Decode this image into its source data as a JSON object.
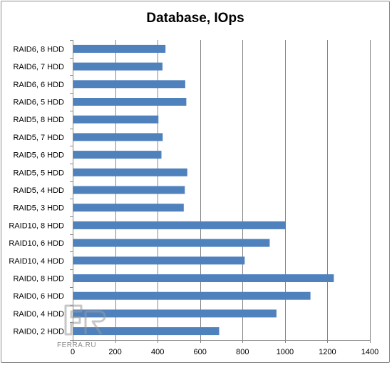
{
  "chart_data": {
    "type": "bar",
    "orientation": "horizontal",
    "title": "Database, IOps",
    "xlabel": "",
    "ylabel": "",
    "categories": [
      "RAID6, 8 HDD",
      "RAID6, 7 HDD",
      "RAID6, 6 HDD",
      "RAID6, 5 HDD",
      "RAID5, 8 HDD",
      "RAID5, 7 HDD",
      "RAID5, 6 HDD",
      "RAID5, 5 HDD",
      "RAID5, 4 HDD",
      "RAID5, 3 HDD",
      "RAID10, 8 HDD",
      "RAID10, 6 HDD",
      "RAID10, 4 HDD",
      "RAID0, 8 HDD",
      "RAID0, 6 HDD",
      "RAID0, 4 HDD",
      "RAID0, 2 HDD"
    ],
    "values": [
      437,
      423,
      530,
      535,
      404,
      424,
      418,
      540,
      528,
      523,
      1003,
      928,
      810,
      1230,
      1120,
      960,
      690
    ],
    "xlim": [
      0,
      1400
    ],
    "x_ticks": [
      "0",
      "200",
      "400",
      "600",
      "800",
      "1000",
      "1200",
      "1400"
    ],
    "grid": "vertical",
    "legend": "none",
    "bar_color": "#4f81bd",
    "grid_color": "#868686"
  },
  "watermark": {
    "text": "FERRA.RU"
  }
}
